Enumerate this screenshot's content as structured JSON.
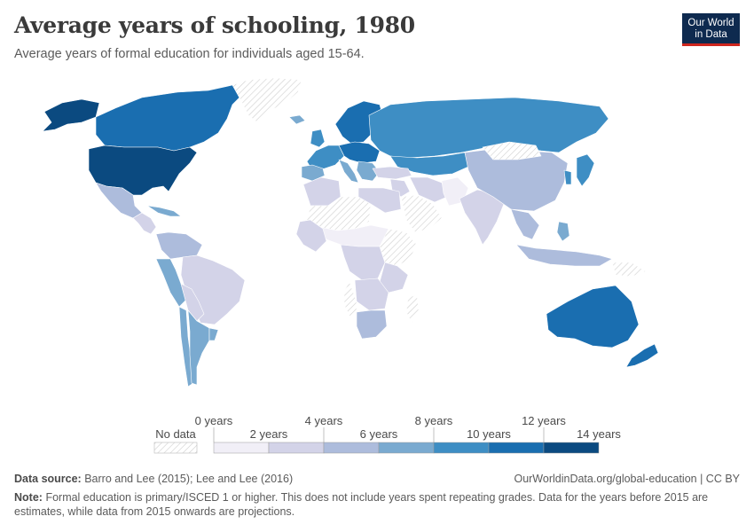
{
  "header": {
    "title": "Average years of schooling, 1980",
    "subtitle": "Average years of formal education for individuals aged 15-64."
  },
  "logo": {
    "line1": "Our World",
    "line2": "in Data",
    "bg_color": "#0e2a4f",
    "accent_color": "#ce261e"
  },
  "legend": {
    "no_data_label": "No data",
    "bins": [
      {
        "lower": "0 years",
        "upper": "2 years",
        "color": "#f1eff7"
      },
      {
        "lower": "2 years",
        "upper": "4 years",
        "color": "#d3d3e8"
      },
      {
        "lower": "4 years",
        "upper": "6 years",
        "color": "#adbcdc"
      },
      {
        "lower": "6 years",
        "upper": "8 years",
        "color": "#7aaad0"
      },
      {
        "lower": "8 years",
        "upper": "10 years",
        "color": "#3e8ec4"
      },
      {
        "lower": "10 years",
        "upper": "12 years",
        "color": "#1a6eb0"
      },
      {
        "lower": "12 years",
        "upper": "14 years",
        "color": "#0b4a80"
      }
    ],
    "top_labels": [
      "0 years",
      "4 years",
      "8 years",
      "12 years"
    ],
    "bottom_labels": [
      "2 years",
      "6 years",
      "10 years",
      "14 years"
    ]
  },
  "map": {
    "regions": [
      {
        "id": "canada",
        "bin": 5
      },
      {
        "id": "usa",
        "bin": 6
      },
      {
        "id": "alaska",
        "bin": 6
      },
      {
        "id": "greenland",
        "bin": -1
      },
      {
        "id": "mexico",
        "bin": 2
      },
      {
        "id": "central-america",
        "bin": 1
      },
      {
        "id": "caribbean",
        "bin": 3
      },
      {
        "id": "colombia-venezuela",
        "bin": 2
      },
      {
        "id": "peru",
        "bin": 3
      },
      {
        "id": "brazil",
        "bin": 1
      },
      {
        "id": "bolivia-paraguay",
        "bin": 1
      },
      {
        "id": "chile",
        "bin": 3
      },
      {
        "id": "argentina",
        "bin": 3
      },
      {
        "id": "uruguay",
        "bin": 3
      },
      {
        "id": "iceland",
        "bin": 3
      },
      {
        "id": "scandinavia",
        "bin": 5
      },
      {
        "id": "uk-ireland",
        "bin": 4
      },
      {
        "id": "western-europe",
        "bin": 4
      },
      {
        "id": "central-europe",
        "bin": 5
      },
      {
        "id": "iberia",
        "bin": 3
      },
      {
        "id": "italy",
        "bin": 3
      },
      {
        "id": "balkans",
        "bin": 3
      },
      {
        "id": "russia",
        "bin": 4
      },
      {
        "id": "central-asia",
        "bin": 4
      },
      {
        "id": "turkey",
        "bin": 1
      },
      {
        "id": "middle-east",
        "bin": 1
      },
      {
        "id": "arabia",
        "bin": -1
      },
      {
        "id": "iran",
        "bin": 1
      },
      {
        "id": "afghanistan-pakistan",
        "bin": 0
      },
      {
        "id": "india",
        "bin": 1
      },
      {
        "id": "china",
        "bin": 2
      },
      {
        "id": "mongolia",
        "bin": -1
      },
      {
        "id": "korea",
        "bin": 4
      },
      {
        "id": "japan",
        "bin": 4
      },
      {
        "id": "southeast-asia",
        "bin": 2
      },
      {
        "id": "philippines",
        "bin": 3
      },
      {
        "id": "indonesia",
        "bin": 2
      },
      {
        "id": "png",
        "bin": -1
      },
      {
        "id": "australia",
        "bin": 5
      },
      {
        "id": "new-zealand",
        "bin": 5
      },
      {
        "id": "north-africa-west",
        "bin": 1
      },
      {
        "id": "sahara",
        "bin": -1
      },
      {
        "id": "egypt-libya",
        "bin": 1
      },
      {
        "id": "sahel",
        "bin": 0
      },
      {
        "id": "west-africa",
        "bin": 1
      },
      {
        "id": "central-africa",
        "bin": 1
      },
      {
        "id": "east-africa",
        "bin": -1
      },
      {
        "id": "kenya-tanzania",
        "bin": 1
      },
      {
        "id": "angola-zambia",
        "bin": 1
      },
      {
        "id": "southern-africa",
        "bin": 2
      },
      {
        "id": "namibia",
        "bin": -1
      },
      {
        "id": "madagascar",
        "bin": -1
      }
    ]
  },
  "footer": {
    "source_label": "Data source:",
    "source_text": "Barro and Lee (2015); Lee and Lee (2016)",
    "url_text": "OurWorldinData.org/global-education | CC BY",
    "note_label": "Note:",
    "note_text": "Formal education is primary/ISCED 1 or higher. This does not include years spent repeating grades. Data for the years before 2015 are estimates, while data from 2015 onwards are projections."
  }
}
